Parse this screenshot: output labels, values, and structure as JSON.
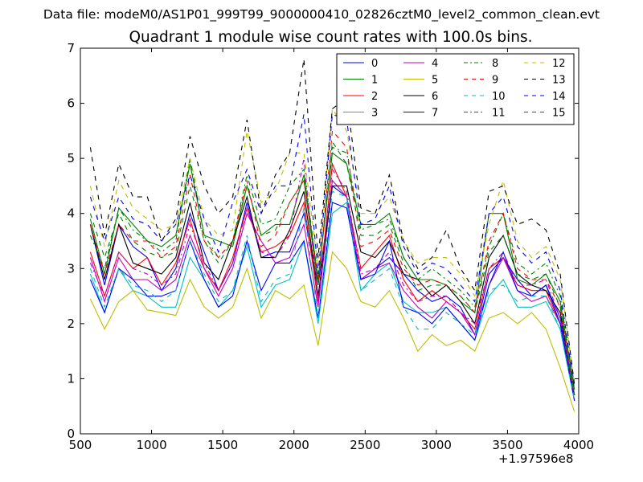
{
  "header": {
    "data_file": "Data file: modeM0/AS1P01_999T99_9000000410_02826cztM0_level2_common_clean.evt"
  },
  "chart_data": {
    "type": "line",
    "title": "Quadrant 1 module wise count rates with 100.0s bins.",
    "xlabel": "",
    "ylabel": "",
    "x_offset_label": "+1.97596e8",
    "xlim": [
      500,
      4000
    ],
    "ylim": [
      0,
      7
    ],
    "xticks": [
      500,
      1000,
      1500,
      2000,
      2500,
      3000,
      3500,
      4000
    ],
    "yticks": [
      0,
      1,
      2,
      3,
      4,
      5,
      6,
      7
    ],
    "grid": false,
    "legend_position": "top-right",
    "x": [
      570,
      670,
      770,
      870,
      970,
      1070,
      1170,
      1270,
      1370,
      1470,
      1570,
      1670,
      1770,
      1870,
      1970,
      2070,
      2170,
      2270,
      2370,
      2470,
      2570,
      2670,
      2770,
      2870,
      2970,
      3070,
      3170,
      3270,
      3370,
      3470,
      3570,
      3670,
      3770,
      3870,
      3970
    ],
    "series": [
      {
        "name": "0",
        "color": "#0000ff",
        "dash": "solid",
        "values": [
          3.8,
          2.7,
          3.8,
          3.4,
          3.2,
          2.6,
          3.0,
          4.0,
          3.3,
          2.6,
          3.1,
          4.2,
          3.2,
          3.3,
          3.3,
          4.0,
          2.7,
          4.5,
          4.3,
          2.8,
          3.0,
          3.2,
          2.9,
          2.6,
          2.4,
          2.5,
          2.3,
          1.8,
          2.9,
          3.2,
          2.8,
          2.5,
          2.7,
          2.1,
          0.7
        ]
      },
      {
        "name": "1",
        "color": "#008000",
        "dash": "solid",
        "values": [
          3.9,
          2.9,
          4.1,
          3.8,
          3.5,
          3.4,
          3.6,
          4.9,
          3.6,
          3.5,
          3.4,
          4.5,
          3.6,
          3.8,
          3.8,
          4.7,
          2.8,
          5.1,
          4.9,
          3.8,
          3.8,
          4.0,
          3.2,
          2.8,
          2.8,
          2.7,
          2.4,
          2.2,
          4.0,
          4.0,
          2.8,
          2.7,
          2.9,
          2.4,
          0.8
        ]
      },
      {
        "name": "2",
        "color": "#ff0000",
        "dash": "solid",
        "values": [
          3.3,
          2.5,
          3.3,
          3.0,
          3.2,
          2.7,
          3.1,
          3.9,
          3.0,
          2.6,
          3.2,
          4.1,
          3.3,
          3.4,
          3.6,
          4.2,
          2.4,
          4.9,
          4.3,
          3.0,
          3.3,
          3.6,
          2.8,
          2.4,
          2.6,
          2.4,
          2.2,
          1.9,
          3.0,
          3.2,
          2.7,
          2.6,
          2.6,
          2.0,
          0.7
        ]
      },
      {
        "name": "3",
        "color": "#00bfbf",
        "dash": "solid",
        "values": [
          2.9,
          2.2,
          3.0,
          2.6,
          2.5,
          2.3,
          2.3,
          3.2,
          2.8,
          2.3,
          2.6,
          3.4,
          2.3,
          2.7,
          2.8,
          3.5,
          2.0,
          4.0,
          4.2,
          2.6,
          2.9,
          3.1,
          2.4,
          2.2,
          2.2,
          2.3,
          2.0,
          1.7,
          2.5,
          2.8,
          2.3,
          2.3,
          2.4,
          1.9,
          0.6
        ]
      },
      {
        "name": "4",
        "color": "#bf00bf",
        "dash": "solid",
        "values": [
          3.2,
          2.4,
          3.2,
          2.8,
          2.8,
          2.6,
          2.8,
          3.6,
          3.0,
          2.5,
          3.0,
          4.0,
          3.5,
          3.1,
          3.2,
          3.8,
          2.3,
          4.6,
          4.3,
          2.8,
          3.0,
          3.1,
          2.6,
          2.3,
          2.1,
          2.4,
          2.2,
          1.8,
          2.7,
          3.2,
          2.6,
          2.4,
          2.5,
          2.0,
          0.7
        ]
      },
      {
        "name": "5",
        "color": "#bfbf00",
        "dash": "solid",
        "values": [
          2.45,
          1.9,
          2.4,
          2.6,
          2.25,
          2.2,
          2.15,
          2.8,
          2.3,
          2.1,
          2.3,
          3.0,
          2.1,
          2.6,
          2.45,
          2.7,
          1.6,
          3.3,
          3.0,
          2.4,
          2.3,
          2.6,
          2.1,
          1.5,
          1.8,
          1.6,
          1.7,
          1.5,
          2.1,
          2.2,
          2.0,
          2.2,
          1.9,
          1.2,
          0.4
        ]
      },
      {
        "name": "6",
        "color": "#000000",
        "dash": "solid",
        "values": [
          3.8,
          2.8,
          3.8,
          3.1,
          3.0,
          2.9,
          3.2,
          4.2,
          3.1,
          2.8,
          3.5,
          4.3,
          3.2,
          3.2,
          3.7,
          4.4,
          2.5,
          4.5,
          4.5,
          3.3,
          3.2,
          3.5,
          2.9,
          2.8,
          2.5,
          2.7,
          2.4,
          2.0,
          3.2,
          3.6,
          2.9,
          2.7,
          2.6,
          2.2,
          0.7
        ]
      },
      {
        "name": "7",
        "color": "#0000ff",
        "dash": "solid",
        "values": [
          2.8,
          2.2,
          3.0,
          2.8,
          2.5,
          2.5,
          2.6,
          3.5,
          2.8,
          2.3,
          2.5,
          3.5,
          2.6,
          3.1,
          3.1,
          3.5,
          2.1,
          4.2,
          4.1,
          2.8,
          2.9,
          3.5,
          2.3,
          2.2,
          2.0,
          2.3,
          2.0,
          1.7,
          2.7,
          3.3,
          2.6,
          2.5,
          2.7,
          2.0,
          0.6
        ]
      },
      {
        "name": "8",
        "color": "#008000",
        "dash": "dashdot",
        "values": [
          3.6,
          3.0,
          4.1,
          3.7,
          3.5,
          3.3,
          3.5,
          5.0,
          3.6,
          3.2,
          3.5,
          4.7,
          3.8,
          3.9,
          4.5,
          4.8,
          2.8,
          5.2,
          5.1,
          3.7,
          3.8,
          3.9,
          3.2,
          2.8,
          3.0,
          2.8,
          2.6,
          2.3,
          3.4,
          4.0,
          3.1,
          2.9,
          3.1,
          2.5,
          0.8
        ]
      },
      {
        "name": "9",
        "color": "#ff0000",
        "dash": "dashed",
        "values": [
          3.8,
          2.9,
          3.8,
          3.5,
          3.5,
          3.2,
          3.4,
          4.7,
          3.5,
          3.2,
          3.5,
          4.6,
          3.4,
          3.6,
          4.2,
          4.6,
          2.7,
          5.5,
          5.2,
          3.4,
          3.5,
          3.7,
          3.0,
          2.7,
          2.8,
          2.7,
          2.5,
          2.2,
          3.5,
          4.0,
          3.0,
          2.8,
          2.8,
          2.3,
          0.7
        ]
      },
      {
        "name": "10",
        "color": "#00bfbf",
        "dash": "dashed",
        "values": [
          3.0,
          2.3,
          3.0,
          2.7,
          2.6,
          2.4,
          2.6,
          3.5,
          2.9,
          2.4,
          2.6,
          3.6,
          2.4,
          2.8,
          2.9,
          4.1,
          2.1,
          4.4,
          4.3,
          2.6,
          2.8,
          3.0,
          2.3,
          1.9,
          1.9,
          2.2,
          2.0,
          1.8,
          2.6,
          2.7,
          2.4,
          2.5,
          2.5,
          1.9,
          0.6
        ]
      },
      {
        "name": "11",
        "color": "#bf00bf",
        "dash": "dashdot",
        "values": [
          3.1,
          2.5,
          3.3,
          3.0,
          2.9,
          2.7,
          2.9,
          3.8,
          3.1,
          2.6,
          3.1,
          4.1,
          3.3,
          3.2,
          3.6,
          5.0,
          2.4,
          4.8,
          4.4,
          2.9,
          3.0,
          3.3,
          2.7,
          2.4,
          2.5,
          2.5,
          2.2,
          2.0,
          3.0,
          3.3,
          2.7,
          2.7,
          2.8,
          2.1,
          0.7
        ]
      },
      {
        "name": "12",
        "color": "#bfbf00",
        "dash": "dashed",
        "values": [
          4.5,
          3.4,
          4.6,
          4.1,
          3.9,
          3.7,
          3.8,
          5.0,
          3.9,
          3.6,
          3.7,
          5.5,
          4.2,
          4.4,
          5.1,
          5.1,
          3.0,
          5.9,
          5.5,
          4.0,
          4.0,
          4.3,
          3.5,
          3.1,
          3.2,
          3.2,
          2.9,
          2.5,
          3.8,
          4.6,
          3.5,
          3.2,
          3.4,
          2.8,
          0.9
        ]
      },
      {
        "name": "13",
        "color": "#000000",
        "dash": "dashed",
        "values": [
          5.2,
          3.6,
          4.9,
          4.3,
          4.3,
          3.5,
          3.9,
          5.4,
          4.5,
          4.0,
          4.3,
          5.7,
          4.0,
          4.7,
          5.1,
          6.8,
          3.2,
          5.9,
          6.1,
          4.1,
          4.0,
          4.7,
          3.5,
          3.0,
          3.2,
          3.7,
          3.0,
          2.6,
          4.4,
          4.5,
          3.8,
          3.9,
          3.7,
          2.9,
          0.9
        ]
      },
      {
        "name": "14",
        "color": "#0000ff",
        "dash": "dashed",
        "values": [
          4.3,
          3.5,
          4.3,
          3.9,
          3.8,
          3.5,
          3.8,
          4.7,
          3.9,
          3.3,
          4.2,
          4.8,
          4.0,
          4.5,
          4.5,
          5.8,
          2.9,
          5.8,
          5.7,
          3.8,
          3.9,
          4.5,
          3.4,
          2.9,
          3.1,
          3.0,
          2.7,
          2.4,
          4.0,
          4.3,
          3.4,
          3.1,
          3.3,
          2.6,
          0.8
        ]
      },
      {
        "name": "15",
        "color": "#008000",
        "dash": "dashed",
        "values": [
          4.0,
          3.2,
          4.0,
          3.5,
          3.3,
          3.2,
          3.3,
          4.5,
          3.5,
          3.1,
          3.5,
          4.5,
          3.6,
          3.7,
          4.2,
          4.6,
          2.7,
          5.3,
          4.9,
          3.6,
          3.6,
          3.8,
          3.1,
          2.6,
          2.7,
          2.7,
          2.5,
          2.2,
          3.3,
          3.6,
          2.9,
          2.8,
          2.9,
          2.3,
          0.7
        ]
      }
    ]
  }
}
